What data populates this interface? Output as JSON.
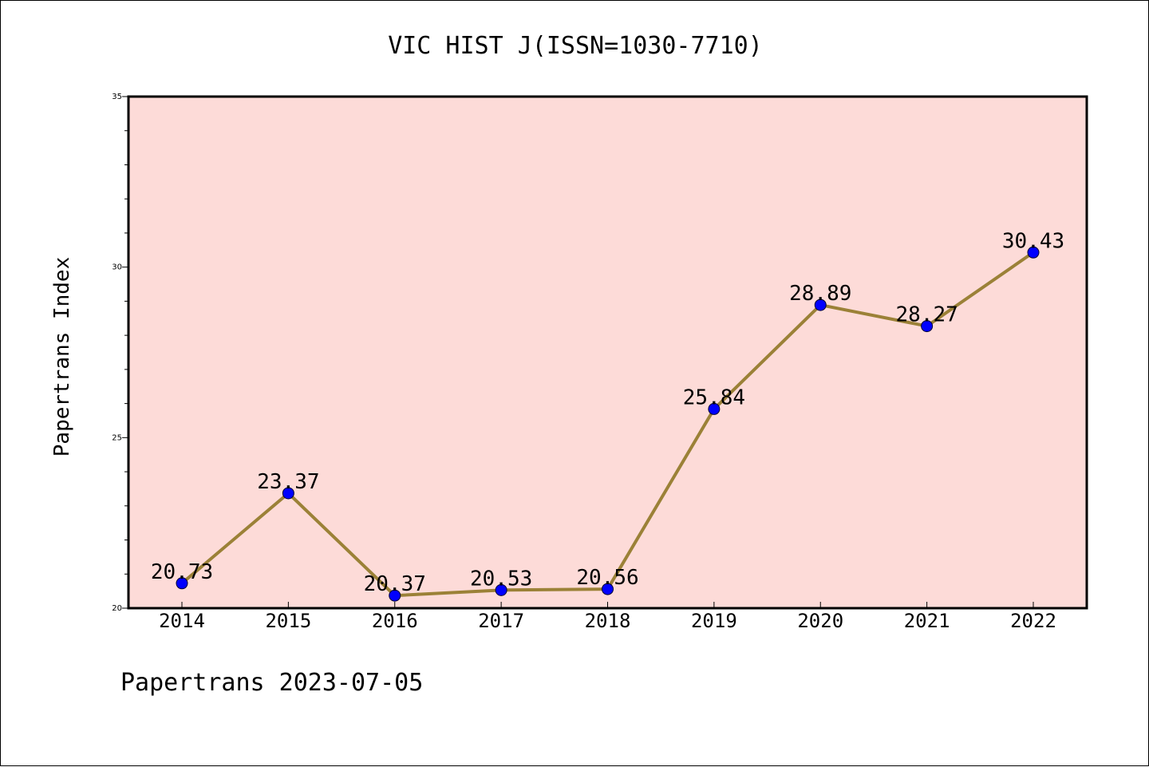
{
  "chart_data": {
    "type": "line",
    "title": "VIC HIST J(ISSN=1030-7710)",
    "ylabel": "Papertrans Index",
    "xlabel": "",
    "categories": [
      "2014",
      "2015",
      "2016",
      "2017",
      "2018",
      "2019",
      "2020",
      "2021",
      "2022"
    ],
    "series": [
      {
        "values": [
          20.73,
          23.37,
          20.37,
          20.53,
          20.56,
          25.84,
          28.89,
          28.27,
          30.43
        ],
        "data_labels": [
          "20.73",
          "23.37",
          "20.37",
          "20.53",
          "20.56",
          "25.84",
          "28.89",
          "28.27",
          "30.43"
        ],
        "line_color": "#9b8137",
        "marker_color": "#0000ff"
      }
    ],
    "ylim": [
      20,
      35
    ],
    "yticks": [
      "20",
      "25",
      "30",
      "35"
    ],
    "plot_background": "#fddbd8",
    "grid": false,
    "legend": "none"
  },
  "footer": "Papertrans 2023-07-05"
}
